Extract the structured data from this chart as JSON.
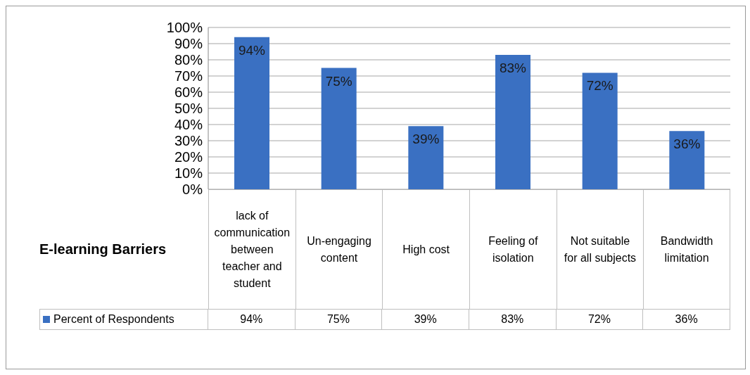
{
  "chart_data": {
    "type": "bar",
    "xlabel": "E-learning Barriers",
    "categories": [
      "lack of communication between teacher and student",
      "Un-engaging content",
      "High cost",
      "Feeling of isolation",
      "Not suitable for all subjects",
      "Bandwidth limitation"
    ],
    "series": [
      {
        "name": "Percent of Respondents",
        "color": "#3a70c2",
        "values": [
          94,
          75,
          39,
          83,
          72,
          36
        ],
        "value_labels": [
          "94%",
          "75%",
          "39%",
          "83%",
          "72%",
          "36%"
        ]
      }
    ],
    "ylim": [
      0,
      100
    ],
    "yticks": [
      {
        "value": 0,
        "label": "0%"
      },
      {
        "value": 10,
        "label": "10%"
      },
      {
        "value": 20,
        "label": "20%"
      },
      {
        "value": 30,
        "label": "30%"
      },
      {
        "value": 40,
        "label": "40%"
      },
      {
        "value": 50,
        "label": "50%"
      },
      {
        "value": 60,
        "label": "60%"
      },
      {
        "value": 70,
        "label": "70%"
      },
      {
        "value": 80,
        "label": "80%"
      },
      {
        "value": 90,
        "label": "90%"
      },
      {
        "value": 100,
        "label": "100%"
      }
    ],
    "grid": "y",
    "legend": "bottom"
  }
}
